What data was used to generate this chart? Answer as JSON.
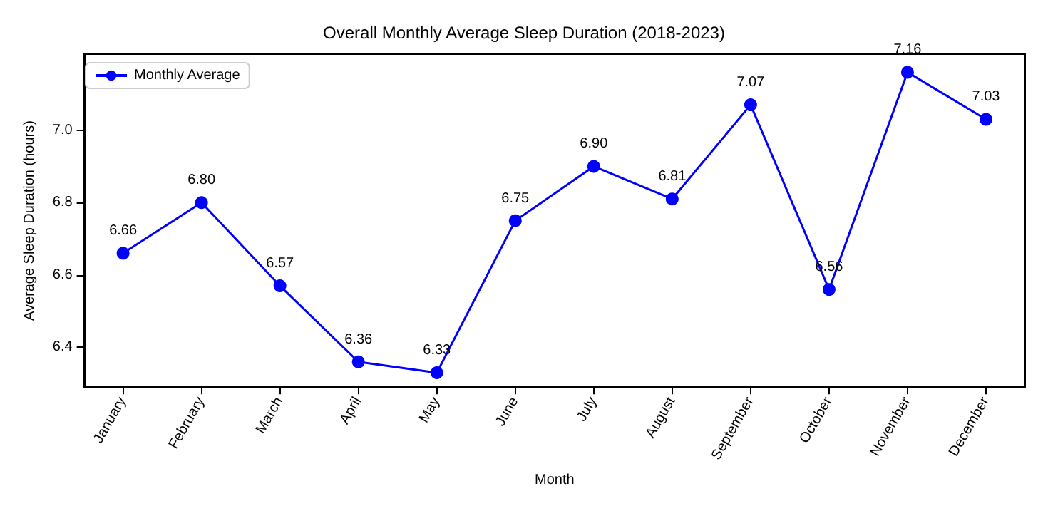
{
  "chart_data": {
    "type": "line",
    "title": "Overall Monthly Average Sleep Duration (2018-2023)",
    "xlabel": "Month",
    "ylabel": "Average Sleep Duration (hours)",
    "categories": [
      "January",
      "February",
      "March",
      "April",
      "May",
      "June",
      "July",
      "August",
      "September",
      "October",
      "November",
      "December"
    ],
    "series": [
      {
        "name": "Monthly Average",
        "color": "#0000ff",
        "values": [
          6.66,
          6.8,
          6.57,
          6.36,
          6.33,
          6.75,
          6.9,
          6.81,
          7.07,
          6.56,
          7.16,
          7.03
        ],
        "value_labels": [
          "6.66",
          "6.80",
          "6.57",
          "6.36",
          "6.33",
          "6.75",
          "6.90",
          "6.81",
          "7.07",
          "6.56",
          "7.16",
          "7.03"
        ]
      }
    ],
    "ylim": [
      6.29,
      7.21
    ],
    "yticks": [
      6.4,
      6.6,
      6.8,
      {
        "value": 7,
        "label": "7.0"
      }
    ],
    "grid": false,
    "legend": "top left",
    "marker": "circle",
    "line_style": "solid"
  }
}
